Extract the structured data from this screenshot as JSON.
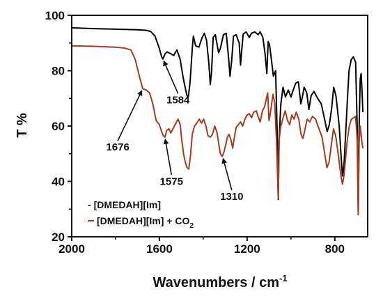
{
  "chart_data": {
    "type": "line",
    "xlabel": "Wavenumbers / cm",
    "xlabel_sup": "-1",
    "ylabel": "T %",
    "xlim": [
      2000,
      650
    ],
    "ylim": [
      20,
      100
    ],
    "x_reversed": true,
    "grid": false,
    "legend_placement": "bottom-left",
    "x_ticks": [
      2000,
      1600,
      1200,
      800
    ],
    "y_ticks": [
      20,
      40,
      60,
      80,
      100
    ],
    "series": [
      {
        "name": "[DMEDAH][Im]",
        "legend_prefix": "- ",
        "color": "#000000",
        "points": [
          [
            2000,
            95.5
          ],
          [
            1900,
            95.2
          ],
          [
            1800,
            95.0
          ],
          [
            1700,
            94.8
          ],
          [
            1660,
            94.6
          ],
          [
            1640,
            94.2
          ],
          [
            1620,
            92.5
          ],
          [
            1600,
            88.0
          ],
          [
            1590,
            85.0
          ],
          [
            1584,
            84.2
          ],
          [
            1575,
            86.0
          ],
          [
            1565,
            86.8
          ],
          [
            1550,
            86.2
          ],
          [
            1535,
            85.5
          ],
          [
            1520,
            87.5
          ],
          [
            1505,
            84.0
          ],
          [
            1495,
            79.0
          ],
          [
            1488,
            76.0
          ],
          [
            1480,
            73.0
          ],
          [
            1474,
            71.0
          ],
          [
            1468,
            70.5
          ],
          [
            1460,
            76.0
          ],
          [
            1450,
            88.0
          ],
          [
            1445,
            92.5
          ],
          [
            1435,
            89.0
          ],
          [
            1420,
            88.5
          ],
          [
            1405,
            92.0
          ],
          [
            1395,
            93.5
          ],
          [
            1385,
            91.0
          ],
          [
            1375,
            83.0
          ],
          [
            1368,
            75.0
          ],
          [
            1362,
            80.0
          ],
          [
            1355,
            92.0
          ],
          [
            1345,
            93.0
          ],
          [
            1330,
            86.5
          ],
          [
            1322,
            88.0
          ],
          [
            1308,
            93.0
          ],
          [
            1295,
            93.5
          ],
          [
            1285,
            85.0
          ],
          [
            1278,
            78.0
          ],
          [
            1270,
            84.0
          ],
          [
            1262,
            92.5
          ],
          [
            1250,
            93.0
          ],
          [
            1236,
            90.0
          ],
          [
            1230,
            82.0
          ],
          [
            1225,
            87.0
          ],
          [
            1218,
            93.2
          ],
          [
            1205,
            94.0
          ],
          [
            1190,
            92.0
          ],
          [
            1180,
            93.5
          ],
          [
            1165,
            94.0
          ],
          [
            1150,
            93.0
          ],
          [
            1140,
            94.0
          ],
          [
            1128,
            92.0
          ],
          [
            1118,
            86.0
          ],
          [
            1110,
            79.0
          ],
          [
            1104,
            90.5
          ],
          [
            1098,
            89.5
          ],
          [
            1090,
            84.5
          ],
          [
            1080,
            78.0
          ],
          [
            1070,
            80.0
          ],
          [
            1062,
            55.0
          ],
          [
            1058,
            33.5
          ],
          [
            1054,
            55.0
          ],
          [
            1046,
            68.0
          ],
          [
            1036,
            74.0
          ],
          [
            1025,
            70.5
          ],
          [
            1012,
            73.0
          ],
          [
            1000,
            70.5
          ],
          [
            990,
            73.0
          ],
          [
            978,
            75.5
          ],
          [
            966,
            76.0
          ],
          [
            955,
            68.0
          ],
          [
            948,
            70.5
          ],
          [
            940,
            74.0
          ],
          [
            928,
            72.0
          ],
          [
            918,
            66.0
          ],
          [
            908,
            71.0
          ],
          [
            895,
            72.5
          ],
          [
            878,
            70.0
          ],
          [
            862,
            68.0
          ],
          [
            848,
            63.0
          ],
          [
            835,
            58.0
          ],
          [
            825,
            60.5
          ],
          [
            815,
            66.0
          ],
          [
            805,
            74.0
          ],
          [
            795,
            71.0
          ],
          [
            788,
            66.0
          ],
          [
            780,
            60.0
          ],
          [
            772,
            50.0
          ],
          [
            765,
            42.0
          ],
          [
            758,
            46.0
          ],
          [
            750,
            58.0
          ],
          [
            742,
            70.0
          ],
          [
            735,
            80.0
          ],
          [
            725,
            84.0
          ],
          [
            715,
            85.0
          ],
          [
            705,
            83.0
          ],
          [
            698,
            60.0
          ],
          [
            693,
            28.0
          ],
          [
            689,
            60.0
          ],
          [
            684,
            77.0
          ],
          [
            680,
            79.0
          ],
          [
            676,
            73.0
          ],
          [
            672,
            65.0
          ]
        ]
      },
      {
        "name": "[DMEDAH][Im] + CO",
        "name_sub": "2",
        "legend_prefix": "",
        "color": "#a23d1f",
        "points": [
          [
            2000,
            89.0
          ],
          [
            1900,
            88.8
          ],
          [
            1800,
            88.5
          ],
          [
            1760,
            88.2
          ],
          [
            1730,
            87.5
          ],
          [
            1710,
            84.0
          ],
          [
            1690,
            77.5
          ],
          [
            1676,
            73.5
          ],
          [
            1660,
            73.0
          ],
          [
            1645,
            72.0
          ],
          [
            1630,
            68.0
          ],
          [
            1615,
            62.0
          ],
          [
            1600,
            60.5
          ],
          [
            1590,
            58.0
          ],
          [
            1582,
            56.5
          ],
          [
            1575,
            56.0
          ],
          [
            1566,
            58.5
          ],
          [
            1557,
            59.0
          ],
          [
            1548,
            57.5
          ],
          [
            1538,
            59.0
          ],
          [
            1525,
            61.0
          ],
          [
            1515,
            62.5
          ],
          [
            1505,
            60.5
          ],
          [
            1498,
            55.0
          ],
          [
            1490,
            50.0
          ],
          [
            1482,
            47.0
          ],
          [
            1474,
            45.0
          ],
          [
            1466,
            44.5
          ],
          [
            1458,
            49.5
          ],
          [
            1450,
            57.0
          ],
          [
            1440,
            60.0
          ],
          [
            1430,
            61.0
          ],
          [
            1418,
            62.5
          ],
          [
            1408,
            61.0
          ],
          [
            1398,
            62.5
          ],
          [
            1388,
            60.0
          ],
          [
            1378,
            56.5
          ],
          [
            1368,
            56.0
          ],
          [
            1358,
            57.0
          ],
          [
            1348,
            60.0
          ],
          [
            1338,
            58.0
          ],
          [
            1330,
            54.0
          ],
          [
            1322,
            50.0
          ],
          [
            1314,
            49.0
          ],
          [
            1306,
            50.5
          ],
          [
            1298,
            53.0
          ],
          [
            1290,
            56.0
          ],
          [
            1282,
            57.0
          ],
          [
            1272,
            54.5
          ],
          [
            1266,
            52.0
          ],
          [
            1258,
            56.0
          ],
          [
            1250,
            59.5
          ],
          [
            1240,
            60.5
          ],
          [
            1230,
            61.5
          ],
          [
            1220,
            60.0
          ],
          [
            1210,
            62.5
          ],
          [
            1200,
            64.0
          ],
          [
            1190,
            64.5
          ],
          [
            1180,
            63.0
          ],
          [
            1170,
            65.0
          ],
          [
            1158,
            65.5
          ],
          [
            1148,
            63.0
          ],
          [
            1140,
            61.5
          ],
          [
            1130,
            65.5
          ],
          [
            1120,
            67.0
          ],
          [
            1112,
            70.0
          ],
          [
            1106,
            72.0
          ],
          [
            1100,
            62.0
          ],
          [
            1095,
            64.0
          ],
          [
            1088,
            68.0
          ],
          [
            1082,
            71.5
          ],
          [
            1074,
            68.5
          ],
          [
            1066,
            55.0
          ],
          [
            1058,
            34.0
          ],
          [
            1054,
            55.0
          ],
          [
            1046,
            60.0
          ],
          [
            1036,
            63.0
          ],
          [
            1026,
            65.5
          ],
          [
            1016,
            62.0
          ],
          [
            1006,
            60.5
          ],
          [
            996,
            64.0
          ],
          [
            986,
            62.5
          ],
          [
            976,
            65.0
          ],
          [
            964,
            62.5
          ],
          [
            954,
            57.0
          ],
          [
            946,
            55.5
          ],
          [
            938,
            58.0
          ],
          [
            926,
            62.5
          ],
          [
            914,
            61.5
          ],
          [
            902,
            63.5
          ],
          [
            888,
            62.5
          ],
          [
            872,
            59.0
          ],
          [
            858,
            56.0
          ],
          [
            846,
            50.0
          ],
          [
            836,
            45.0
          ],
          [
            826,
            47.0
          ],
          [
            816,
            53.0
          ],
          [
            806,
            59.0
          ],
          [
            796,
            56.5
          ],
          [
            788,
            52.0
          ],
          [
            780,
            47.0
          ],
          [
            772,
            42.0
          ],
          [
            765,
            39.0
          ],
          [
            758,
            42.0
          ],
          [
            750,
            49.0
          ],
          [
            742,
            55.5
          ],
          [
            734,
            60.0
          ],
          [
            724,
            62.5
          ],
          [
            714,
            63.0
          ],
          [
            705,
            63.5
          ],
          [
            698,
            55.0
          ],
          [
            693,
            28.0
          ],
          [
            689,
            54.0
          ],
          [
            684,
            60.0
          ],
          [
            680,
            57.0
          ],
          [
            676,
            54.0
          ],
          [
            672,
            52.0
          ]
        ]
      }
    ],
    "annotations": [
      {
        "label": "1584",
        "x": 1584,
        "y": 84.2,
        "text_x": 1515,
        "text_y": 68.2
      },
      {
        "label": "1676",
        "x": 1676,
        "y": 73.5,
        "text_x": 1790,
        "text_y": 51.2
      },
      {
        "label": "1575",
        "x": 1575,
        "y": 56.0,
        "text_x": 1545,
        "text_y": 38.8
      },
      {
        "label": "1310",
        "x": 1312,
        "y": 49.0,
        "text_x": 1270,
        "text_y": 33.3
      }
    ]
  }
}
